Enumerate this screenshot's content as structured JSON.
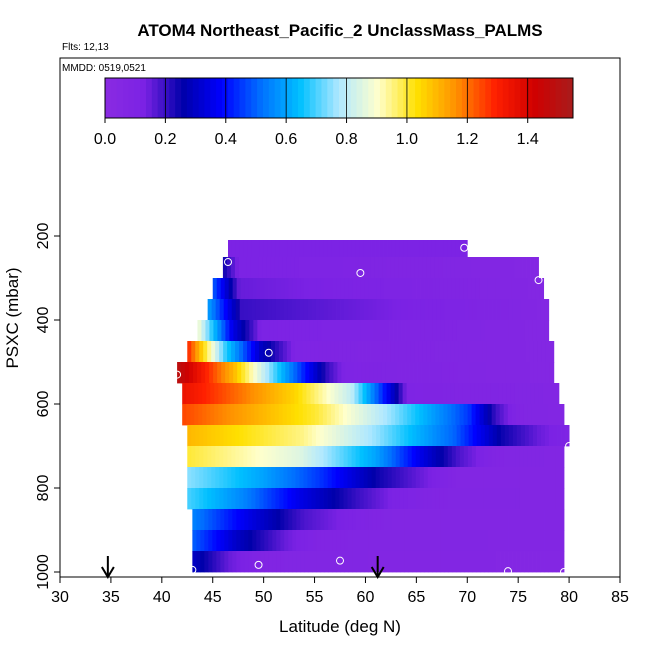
{
  "chart_data": {
    "type": "heatmap",
    "title": "ATOM4 Northeast_Pacific_2 UnclassMass_PALMS",
    "flights_label": "Flts: 12,13",
    "dates_label": "MMDD: 0519,0521",
    "xlabel": "Latitude (deg N)",
    "ylabel": "PSXC (mbar)",
    "xlim": [
      30,
      85
    ],
    "ylim": [
      1000,
      0
    ],
    "x_ticks": [
      30,
      35,
      40,
      45,
      50,
      55,
      60,
      65,
      70,
      75,
      80,
      85
    ],
    "y_ticks": [
      200,
      400,
      600,
      800,
      1000
    ],
    "colorbar": {
      "range": [
        0,
        1.55
      ],
      "ticks": [
        0.0,
        0.2,
        0.4,
        0.6,
        0.8,
        1.0,
        1.2,
        1.4
      ],
      "tick_labels": [
        "0.0",
        "0.2",
        "0.4",
        "0.6",
        "0.8",
        "1.0",
        "1.2",
        "1.4"
      ],
      "colors": [
        "#8a2be2",
        "#7b22e4",
        "#0000aa",
        "#0000ff",
        "#0070ff",
        "#00c0ff",
        "#b0e8ff",
        "#ffffcc",
        "#ffe000",
        "#ff9000",
        "#ff2000",
        "#d00000",
        "#a81c1c"
      ]
    },
    "rows": [
      {
        "p_top": 150,
        "p_bot": 200,
        "x_start": 46.5,
        "x_end": 70,
        "profile": [
          [
            0,
            0.12
          ]
        ]
      },
      {
        "p_top": 200,
        "p_bot": 250,
        "x_start": 46.5,
        "x_end": 70,
        "profile": [
          [
            0,
            0.12
          ]
        ]
      },
      {
        "p_top": 250,
        "p_bot": 300,
        "x_start": 46,
        "x_end": 77,
        "profile": [
          [
            0,
            0.25
          ],
          [
            0.05,
            0.12
          ],
          [
            1,
            0.06
          ]
        ]
      },
      {
        "p_top": 300,
        "p_bot": 350,
        "x_start": 45,
        "x_end": 77.5,
        "profile": [
          [
            0,
            0.5
          ],
          [
            0.08,
            0.15
          ],
          [
            1,
            0.06
          ]
        ]
      },
      {
        "p_top": 350,
        "p_bot": 400,
        "x_start": 44.5,
        "x_end": 78,
        "profile": [
          [
            0,
            0.6
          ],
          [
            0.1,
            0.2
          ],
          [
            1,
            0.06
          ]
        ]
      },
      {
        "p_top": 400,
        "p_bot": 450,
        "x_start": 43.5,
        "x_end": 78,
        "profile": [
          [
            0,
            0.9
          ],
          [
            0.1,
            0.35
          ],
          [
            0.18,
            0.12
          ],
          [
            1,
            0.06
          ]
        ]
      },
      {
        "p_top": 450,
        "p_bot": 500,
        "x_start": 42.5,
        "x_end": 78.5,
        "profile": [
          [
            0,
            1.3
          ],
          [
            0.1,
            0.7
          ],
          [
            0.2,
            0.3
          ],
          [
            0.3,
            0.1
          ],
          [
            1,
            0.06
          ]
        ]
      },
      {
        "p_top": 500,
        "p_bot": 550,
        "x_start": 41.5,
        "x_end": 78.5,
        "profile": [
          [
            0,
            1.5
          ],
          [
            0.15,
            1.1
          ],
          [
            0.3,
            0.55
          ],
          [
            0.4,
            0.2
          ],
          [
            0.45,
            0.1
          ],
          [
            1,
            0.06
          ]
        ]
      },
      {
        "p_top": 550,
        "p_bot": 600,
        "x_start": 42,
        "x_end": 79,
        "profile": [
          [
            0,
            1.35
          ],
          [
            0.3,
            1.05
          ],
          [
            0.45,
            0.8
          ],
          [
            0.55,
            0.35
          ],
          [
            0.6,
            0.1
          ],
          [
            1,
            0.07
          ]
        ]
      },
      {
        "p_top": 600,
        "p_bot": 650,
        "x_start": 42,
        "x_end": 79.5,
        "profile": [
          [
            0,
            1.25
          ],
          [
            0.35,
            1.0
          ],
          [
            0.55,
            0.75
          ],
          [
            0.75,
            0.45
          ],
          [
            0.82,
            0.2
          ],
          [
            0.88,
            0.08
          ],
          [
            1,
            0.07
          ]
        ]
      },
      {
        "p_top": 650,
        "p_bot": 700,
        "x_start": 42.5,
        "x_end": 80,
        "profile": [
          [
            0,
            1.1
          ],
          [
            0.3,
            0.95
          ],
          [
            0.5,
            0.75
          ],
          [
            0.7,
            0.5
          ],
          [
            0.82,
            0.25
          ],
          [
            0.92,
            0.15
          ],
          [
            1,
            0.1
          ]
        ]
      },
      {
        "p_top": 700,
        "p_bot": 750,
        "x_start": 42.5,
        "x_end": 79.5,
        "profile": [
          [
            0,
            1.0
          ],
          [
            0.3,
            0.85
          ],
          [
            0.5,
            0.6
          ],
          [
            0.62,
            0.35
          ],
          [
            0.72,
            0.18
          ],
          [
            0.82,
            0.08
          ],
          [
            1,
            0.07
          ]
        ]
      },
      {
        "p_top": 750,
        "p_bot": 800,
        "x_start": 42.5,
        "x_end": 79.5,
        "profile": [
          [
            0,
            0.75
          ],
          [
            0.2,
            0.6
          ],
          [
            0.35,
            0.45
          ],
          [
            0.5,
            0.25
          ],
          [
            0.62,
            0.15
          ],
          [
            0.72,
            0.07
          ],
          [
            1,
            0.07
          ]
        ]
      },
      {
        "p_top": 800,
        "p_bot": 850,
        "x_start": 42.5,
        "x_end": 79.5,
        "profile": [
          [
            0,
            0.7
          ],
          [
            0.15,
            0.55
          ],
          [
            0.3,
            0.35
          ],
          [
            0.45,
            0.2
          ],
          [
            0.55,
            0.12
          ],
          [
            0.65,
            0.08
          ],
          [
            1,
            0.07
          ]
        ]
      },
      {
        "p_top": 850,
        "p_bot": 900,
        "x_start": 43,
        "x_end": 79.5,
        "profile": [
          [
            0,
            0.55
          ],
          [
            0.15,
            0.35
          ],
          [
            0.3,
            0.18
          ],
          [
            0.45,
            0.1
          ],
          [
            0.55,
            0.07
          ],
          [
            1,
            0.07
          ]
        ]
      },
      {
        "p_top": 900,
        "p_bot": 950,
        "x_start": 43,
        "x_end": 79.5,
        "profile": [
          [
            0,
            0.5
          ],
          [
            0.12,
            0.3
          ],
          [
            0.25,
            0.15
          ],
          [
            0.35,
            0.08
          ],
          [
            1,
            0.07
          ]
        ]
      },
      {
        "p_top": 950,
        "p_bot": 1000,
        "x_start": 43,
        "x_end": 79.5,
        "profile": [
          [
            0,
            0.3
          ],
          [
            0.1,
            0.15
          ],
          [
            0.2,
            0.08
          ],
          [
            1,
            0.06
          ]
        ]
      }
    ],
    "markers": [
      {
        "lat": 46.5,
        "p": 262
      },
      {
        "lat": 69.7,
        "p": 228
      },
      {
        "lat": 59.5,
        "p": 288
      },
      {
        "lat": 77,
        "p": 305
      },
      {
        "lat": 50.5,
        "p": 478
      },
      {
        "lat": 41.5,
        "p": 530
      },
      {
        "lat": 80,
        "p": 700
      },
      {
        "lat": 43,
        "p": 995
      },
      {
        "lat": 49.5,
        "p": 983
      },
      {
        "lat": 57.5,
        "p": 973
      },
      {
        "lat": 74,
        "p": 998
      },
      {
        "lat": 79.5,
        "p": 1000
      }
    ],
    "arrows": [
      {
        "lat": 34.7
      },
      {
        "lat": 61.2
      }
    ]
  }
}
